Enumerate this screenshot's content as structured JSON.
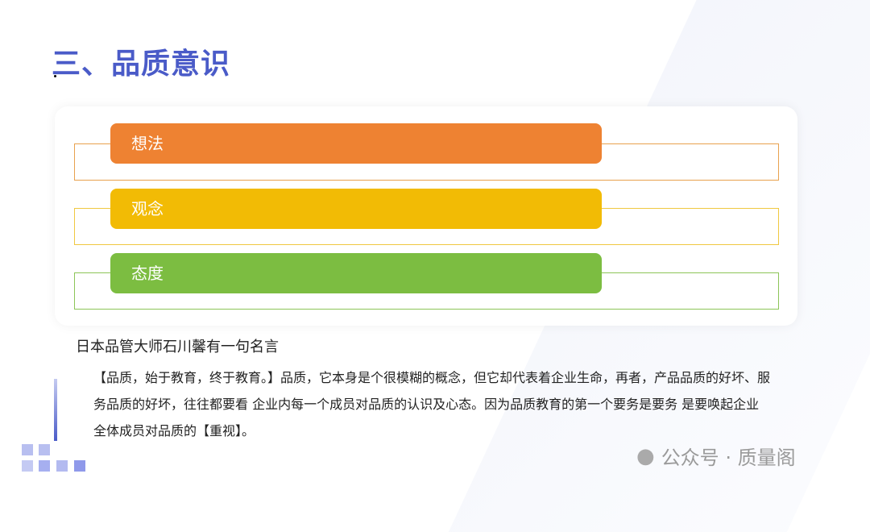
{
  "title": "三、品质意识",
  "items": [
    {
      "label": "想法",
      "color": "#ee8232",
      "border": "#e8a14e"
    },
    {
      "label": "观念",
      "color": "#f2bb05",
      "border": "#f0c840"
    },
    {
      "label": "态度",
      "color": "#7cbd41",
      "border": "#8cc558"
    }
  ],
  "subtitle": "日本品管大师石川馨有一句名言",
  "paragraph": "【品质，始于教育，终于教育。】品质，它本身是个很模糊的概念，但它却代表着企业生命，再者，产品品质的好坏、服务品质的好坏，往往都要看 企业内每一个成员对品质的认识及心态。因为品质教育的第一个要务是要务 是要唤起企业全体成员对品质的【重视】。",
  "watermark": "公众号 · 质量阁",
  "accent": "#4a5bc8"
}
